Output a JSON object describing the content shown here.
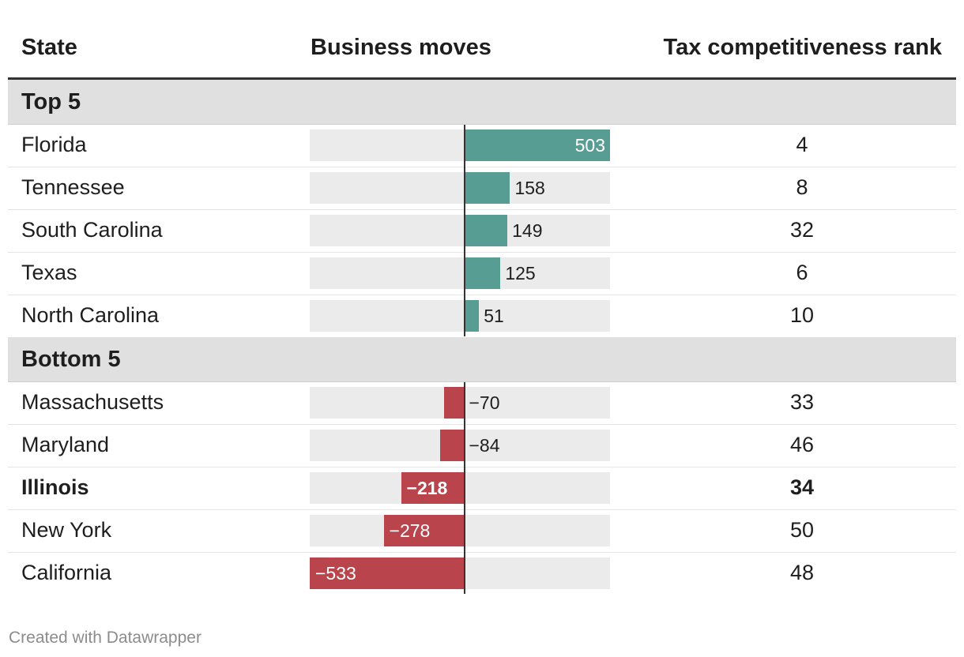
{
  "header": {
    "state": "State",
    "moves": "Business moves",
    "rank": "Tax competitiveness rank"
  },
  "chart_data": {
    "type": "bar",
    "title": "Business moves",
    "xlabel": "",
    "ylabel": "",
    "domain": [
      -533,
      503
    ],
    "groups": [
      {
        "label": "Top 5",
        "rows": [
          {
            "state": "Florida",
            "moves": 503,
            "moves_label": "503",
            "rank": "4",
            "bold": false
          },
          {
            "state": "Tennessee",
            "moves": 158,
            "moves_label": "158",
            "rank": "8",
            "bold": false
          },
          {
            "state": "South Carolina",
            "moves": 149,
            "moves_label": "149",
            "rank": "32",
            "bold": false
          },
          {
            "state": "Texas",
            "moves": 125,
            "moves_label": "125",
            "rank": "6",
            "bold": false
          },
          {
            "state": "North Carolina",
            "moves": 51,
            "moves_label": "51",
            "rank": "10",
            "bold": false
          }
        ]
      },
      {
        "label": "Bottom 5",
        "rows": [
          {
            "state": "Massachusetts",
            "moves": -70,
            "moves_label": "−70",
            "rank": "33",
            "bold": false
          },
          {
            "state": "Maryland",
            "moves": -84,
            "moves_label": "−84",
            "rank": "46",
            "bold": false
          },
          {
            "state": "Illinois",
            "moves": -218,
            "moves_label": "−218",
            "rank": "34",
            "bold": true
          },
          {
            "state": "New York",
            "moves": -278,
            "moves_label": "−278",
            "rank": "50",
            "bold": false
          },
          {
            "state": "California",
            "moves": -533,
            "moves_label": "−533",
            "rank": "48",
            "bold": false
          }
        ]
      }
    ]
  },
  "colors": {
    "positive": "#589d94",
    "negative": "#b9444c",
    "track": "#ebebeb"
  },
  "footer": {
    "credit": "Created with Datawrapper"
  }
}
